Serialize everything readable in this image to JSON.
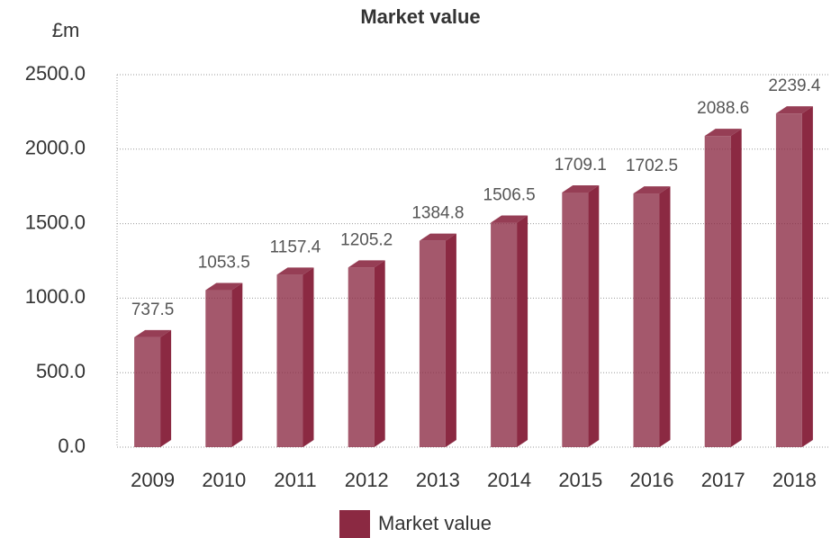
{
  "chart_data": {
    "type": "bar3d",
    "title": "Market value",
    "y_label": "£m",
    "categories": [
      "2009",
      "2010",
      "2011",
      "2012",
      "2013",
      "2014",
      "2015",
      "2016",
      "2017",
      "2018"
    ],
    "series": [
      {
        "name": "Market value",
        "color": "#8b2942",
        "values": [
          737.5,
          1053.5,
          1157.4,
          1205.2,
          1384.8,
          1506.5,
          1709.1,
          1702.5,
          2088.6,
          2239.4
        ]
      }
    ],
    "ylim": [
      0,
      2500
    ],
    "yticks": [
      {
        "value": 0,
        "label": "0.0"
      },
      {
        "value": 500,
        "label": "500.0"
      },
      {
        "value": 1000,
        "label": "1000.0"
      },
      {
        "value": 1500,
        "label": "1500.0"
      },
      {
        "value": 2000,
        "label": "2000.0"
      },
      {
        "value": 2500,
        "label": "2500.0"
      }
    ],
    "grid": true,
    "legend": "bottom"
  }
}
